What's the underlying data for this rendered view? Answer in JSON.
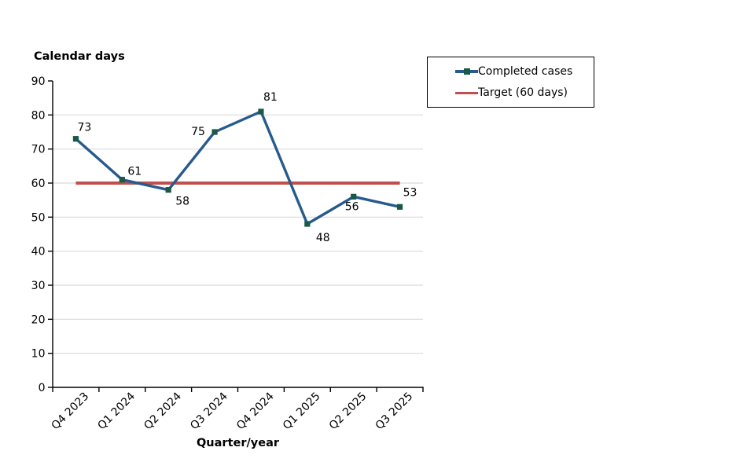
{
  "chart": {
    "title": "Calendar days",
    "x_axis_title": "Quarter/year"
  },
  "legend": {
    "items": [
      {
        "label": "Completed cases",
        "type": "line-with-square-marker"
      },
      {
        "label": "Target (60 days)",
        "type": "line"
      }
    ]
  },
  "colors": {
    "completed_line": "#275A8D",
    "completed_marker": "#185948",
    "target_line": "#C0504D",
    "gridline": "#D9D9D9",
    "axis": "#000000",
    "text": "#000000",
    "background": "#ffffff"
  },
  "chart_data": {
    "type": "line",
    "title": "Calendar days",
    "xlabel": "Quarter/year",
    "ylabel": "Calendar days",
    "categories": [
      "Q4 2023",
      "Q1 2024",
      "Q2 2024",
      "Q3 2024",
      "Q4 2024",
      "Q1 2025",
      "Q2 2025",
      "Q3 2025"
    ],
    "series": [
      {
        "name": "Completed cases",
        "values": [
          73,
          61,
          58,
          75,
          81,
          48,
          56,
          53
        ],
        "color": "#275A8D",
        "marker": "square",
        "marker_color": "#185948",
        "data_labels_shown": true
      },
      {
        "name": "Target (60 days)",
        "values": [
          60,
          60,
          60,
          60,
          60,
          60,
          60,
          60
        ],
        "color": "#C0504D",
        "marker": "none",
        "data_labels_shown": false
      }
    ],
    "ylim": [
      0,
      90
    ],
    "ytick_step": 10,
    "ytick_labels": [
      "0",
      "10",
      "20",
      "30",
      "40",
      "50",
      "60",
      "70",
      "80",
      "90"
    ],
    "grid": "horizontal",
    "gridlines_at": [
      10,
      20,
      30,
      40,
      50,
      60,
      70,
      80
    ],
    "legend_position": "top-right",
    "x_label_rotation_deg": 45
  }
}
